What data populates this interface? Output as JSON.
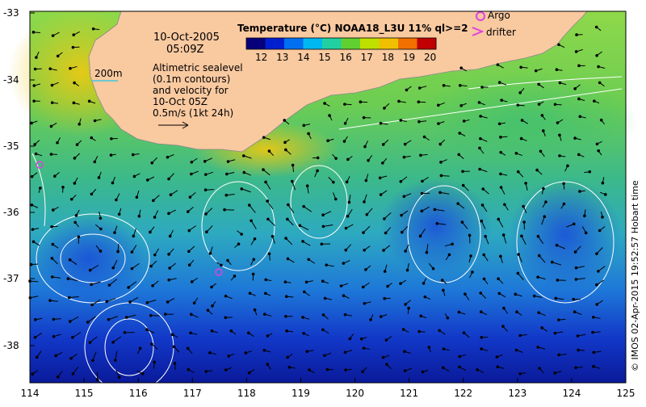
{
  "title": "Temperature (°C) NOAA18_L3U 11% ql>=2",
  "date_line1": "10-Oct-2005",
  "date_line2": "05:09Z",
  "depth_label": "200m",
  "info_lines": [
    "Altimetric sealevel",
    "(0.1m contours)",
    "and velocity for",
    "10-Oct 05Z",
    "0.5m/s (1kt 24h)"
  ],
  "legend": {
    "argo": "Argo",
    "drifter": "drifter"
  },
  "colorbar": {
    "ticks": [
      "12",
      "13",
      "14",
      "15",
      "16",
      "17",
      "18",
      "19",
      "20"
    ],
    "colors": [
      "#06007a",
      "#0020d0",
      "#0070f0",
      "#00b8f0",
      "#20d0a0",
      "#60d030",
      "#c0e000",
      "#f0c000",
      "#f07000",
      "#c00000"
    ]
  },
  "x_ticks": [
    "114",
    "115",
    "116",
    "117",
    "118",
    "119",
    "120",
    "121",
    "122",
    "123",
    "124",
    "125"
  ],
  "y_ticks": [
    "-33",
    "-34",
    "-35",
    "-36",
    "-37",
    "-38"
  ],
  "credit": "© IMOS 02-Apr-2015 19:52:57 Hobart time",
  "colors": {
    "land": "#f9c9a0",
    "argo": "#e040e0",
    "contour": "#ffffff",
    "arrow": "#000000"
  }
}
